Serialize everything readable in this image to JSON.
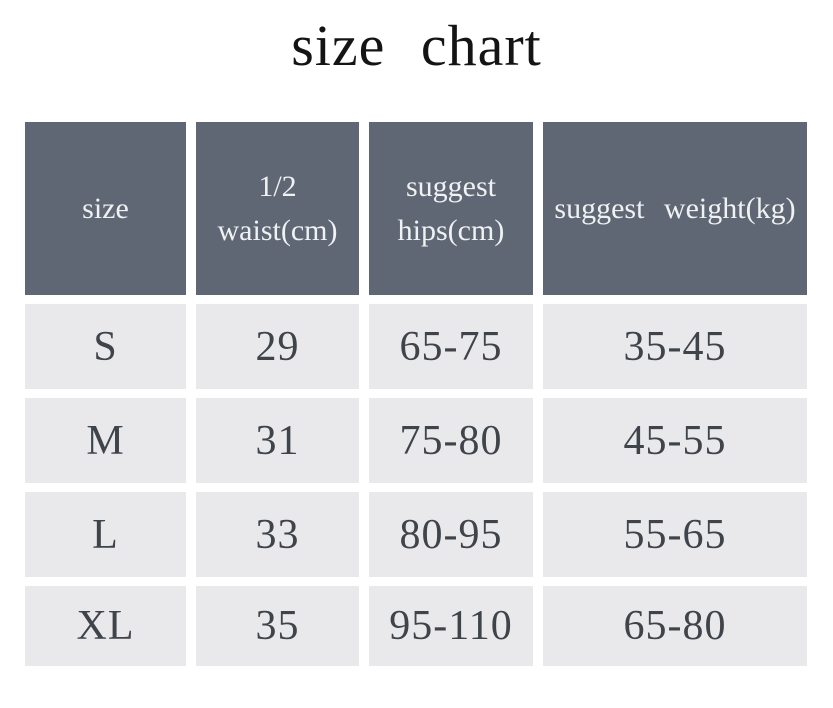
{
  "page": {
    "title": "size chart"
  },
  "colors": {
    "header_bg": "#606774",
    "header_text": "#eff1f3",
    "row_bg": "#e9e9eb",
    "row_text": "#3f434a",
    "title_text": "#141414",
    "background": "#ffffff"
  },
  "table": {
    "headers": [
      {
        "label": "size",
        "line1": "size"
      },
      {
        "label": "1/2 waist(cm)",
        "line1": "1/2",
        "line2": "waist(cm)"
      },
      {
        "label": "suggest hips(cm)",
        "line1": "suggest",
        "line2": "hips(cm)"
      },
      {
        "label": "suggest weight(kg)",
        "line1": "suggest weight(kg)"
      }
    ],
    "rows": [
      {
        "size": "S",
        "waist": "29",
        "hips": "65-75",
        "weight": "35-45"
      },
      {
        "size": "M",
        "waist": "31",
        "hips": "75-80",
        "weight": "45-55"
      },
      {
        "size": "L",
        "waist": "33",
        "hips": "80-95",
        "weight": "55-65"
      },
      {
        "size": "XL",
        "waist": "35",
        "hips": "95-110",
        "weight": "65-80"
      }
    ]
  },
  "chart_data": {
    "type": "table",
    "title": "size chart",
    "columns": [
      "size",
      "1/2 waist(cm)",
      "suggest hips(cm)",
      "suggest weight(kg)"
    ],
    "rows": [
      [
        "S",
        "29",
        "65-75",
        "35-45"
      ],
      [
        "M",
        "31",
        "75-80",
        "45-55"
      ],
      [
        "L",
        "33",
        "80-95",
        "55-65"
      ],
      [
        "XL",
        "35",
        "95-110",
        "65-80"
      ]
    ]
  }
}
